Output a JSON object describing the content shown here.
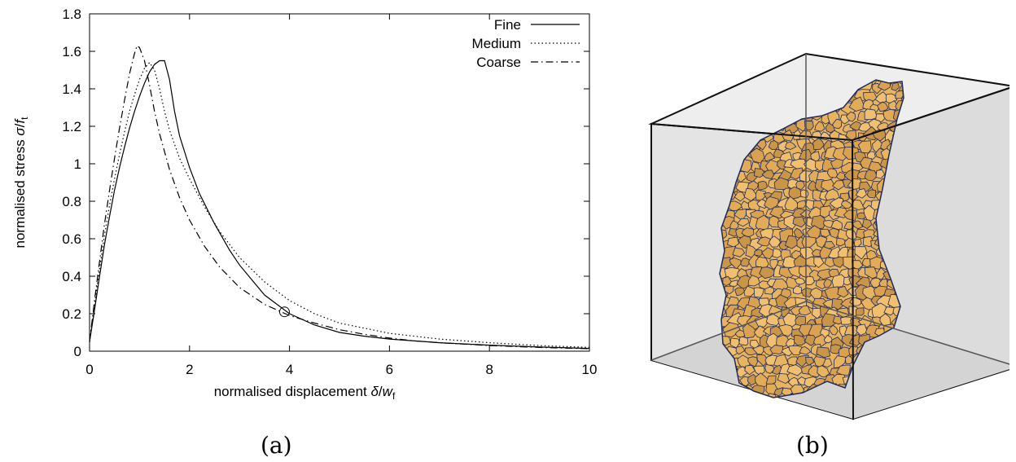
{
  "figure": {
    "caption_a": "(a)",
    "caption_b": "(b)"
  },
  "chart_data": {
    "type": "line",
    "xlabel": "normalised displacement δ/w_f",
    "ylabel": "normalised stress σ/f_t",
    "xlim": [
      0,
      10
    ],
    "ylim": [
      0,
      1.8
    ],
    "xticks": [
      0,
      2,
      4,
      6,
      8,
      10
    ],
    "yticks": [
      0,
      0.2,
      0.4,
      0.6,
      0.8,
      1,
      1.2,
      1.4,
      1.6,
      1.8
    ],
    "xtick_labels": [
      "0",
      "2",
      "4",
      "6",
      "8",
      "10"
    ],
    "ytick_labels": [
      "0",
      "0.2",
      "0.4",
      "0.6",
      "0.8",
      "1",
      "1.2",
      "1.4",
      "1.6",
      "1.8"
    ],
    "legend_position": "top-right",
    "marker": {
      "shape": "open-circle",
      "x": 3.9,
      "y": 0.21
    },
    "series": [
      {
        "name": "Fine",
        "style": "solid",
        "points": [
          [
            0,
            0.05
          ],
          [
            0.1,
            0.22
          ],
          [
            0.2,
            0.4
          ],
          [
            0.3,
            0.57
          ],
          [
            0.4,
            0.72
          ],
          [
            0.5,
            0.86
          ],
          [
            0.6,
            0.98
          ],
          [
            0.7,
            1.09
          ],
          [
            0.8,
            1.19
          ],
          [
            0.9,
            1.28
          ],
          [
            1.0,
            1.36
          ],
          [
            1.1,
            1.43
          ],
          [
            1.2,
            1.49
          ],
          [
            1.3,
            1.53
          ],
          [
            1.4,
            1.55
          ],
          [
            1.5,
            1.55
          ],
          [
            1.6,
            1.45
          ],
          [
            1.7,
            1.28
          ],
          [
            1.8,
            1.15
          ],
          [
            2.0,
            0.98
          ],
          [
            2.2,
            0.84
          ],
          [
            2.5,
            0.68
          ],
          [
            2.8,
            0.54
          ],
          [
            3.0,
            0.46
          ],
          [
            3.5,
            0.3
          ],
          [
            4.0,
            0.2
          ],
          [
            4.5,
            0.14
          ],
          [
            5.0,
            0.1
          ],
          [
            5.5,
            0.08
          ],
          [
            6.0,
            0.065
          ],
          [
            7.0,
            0.045
          ],
          [
            8.0,
            0.032
          ],
          [
            9.0,
            0.022
          ],
          [
            10.0,
            0.015
          ]
        ]
      },
      {
        "name": "Medium",
        "style": "dotted",
        "points": [
          [
            0,
            0.05
          ],
          [
            0.1,
            0.25
          ],
          [
            0.2,
            0.44
          ],
          [
            0.3,
            0.62
          ],
          [
            0.4,
            0.78
          ],
          [
            0.5,
            0.92
          ],
          [
            0.6,
            1.05
          ],
          [
            0.7,
            1.17
          ],
          [
            0.8,
            1.28
          ],
          [
            0.9,
            1.37
          ],
          [
            1.0,
            1.45
          ],
          [
            1.1,
            1.51
          ],
          [
            1.2,
            1.54
          ],
          [
            1.3,
            1.5
          ],
          [
            1.4,
            1.4
          ],
          [
            1.5,
            1.28
          ],
          [
            1.6,
            1.18
          ],
          [
            1.8,
            1.03
          ],
          [
            2.0,
            0.92
          ],
          [
            2.3,
            0.77
          ],
          [
            2.6,
            0.64
          ],
          [
            3.0,
            0.5
          ],
          [
            3.5,
            0.37
          ],
          [
            4.0,
            0.27
          ],
          [
            4.5,
            0.2
          ],
          [
            5.0,
            0.15
          ],
          [
            6.0,
            0.095
          ],
          [
            7.0,
            0.065
          ],
          [
            8.0,
            0.045
          ],
          [
            9.0,
            0.03
          ],
          [
            10.0,
            0.02
          ]
        ]
      },
      {
        "name": "Coarse",
        "style": "dash-dot",
        "points": [
          [
            0,
            0.05
          ],
          [
            0.1,
            0.27
          ],
          [
            0.2,
            0.48
          ],
          [
            0.3,
            0.68
          ],
          [
            0.4,
            0.86
          ],
          [
            0.5,
            1.03
          ],
          [
            0.6,
            1.19
          ],
          [
            0.7,
            1.34
          ],
          [
            0.8,
            1.48
          ],
          [
            0.9,
            1.59
          ],
          [
            0.95,
            1.63
          ],
          [
            1.0,
            1.62
          ],
          [
            1.1,
            1.55
          ],
          [
            1.2,
            1.42
          ],
          [
            1.3,
            1.28
          ],
          [
            1.4,
            1.16
          ],
          [
            1.6,
            0.97
          ],
          [
            1.8,
            0.82
          ],
          [
            2.0,
            0.7
          ],
          [
            2.3,
            0.56
          ],
          [
            2.6,
            0.45
          ],
          [
            3.0,
            0.34
          ],
          [
            3.5,
            0.25
          ],
          [
            4.0,
            0.19
          ],
          [
            4.5,
            0.15
          ],
          [
            5.0,
            0.115
          ],
          [
            5.5,
            0.09
          ],
          [
            6.0,
            0.07
          ],
          [
            6.5,
            0.055
          ],
          [
            7.0,
            0.045
          ],
          [
            8.0,
            0.03
          ],
          [
            9.0,
            0.02
          ],
          [
            10.0,
            0.013
          ]
        ]
      }
    ]
  },
  "panel_b": {
    "box_face_color": "#e6e6e6",
    "box_edge_color": "#111111",
    "cell_fill_color": "#e8b460",
    "cell_edge_color": "#1f2a5a"
  }
}
